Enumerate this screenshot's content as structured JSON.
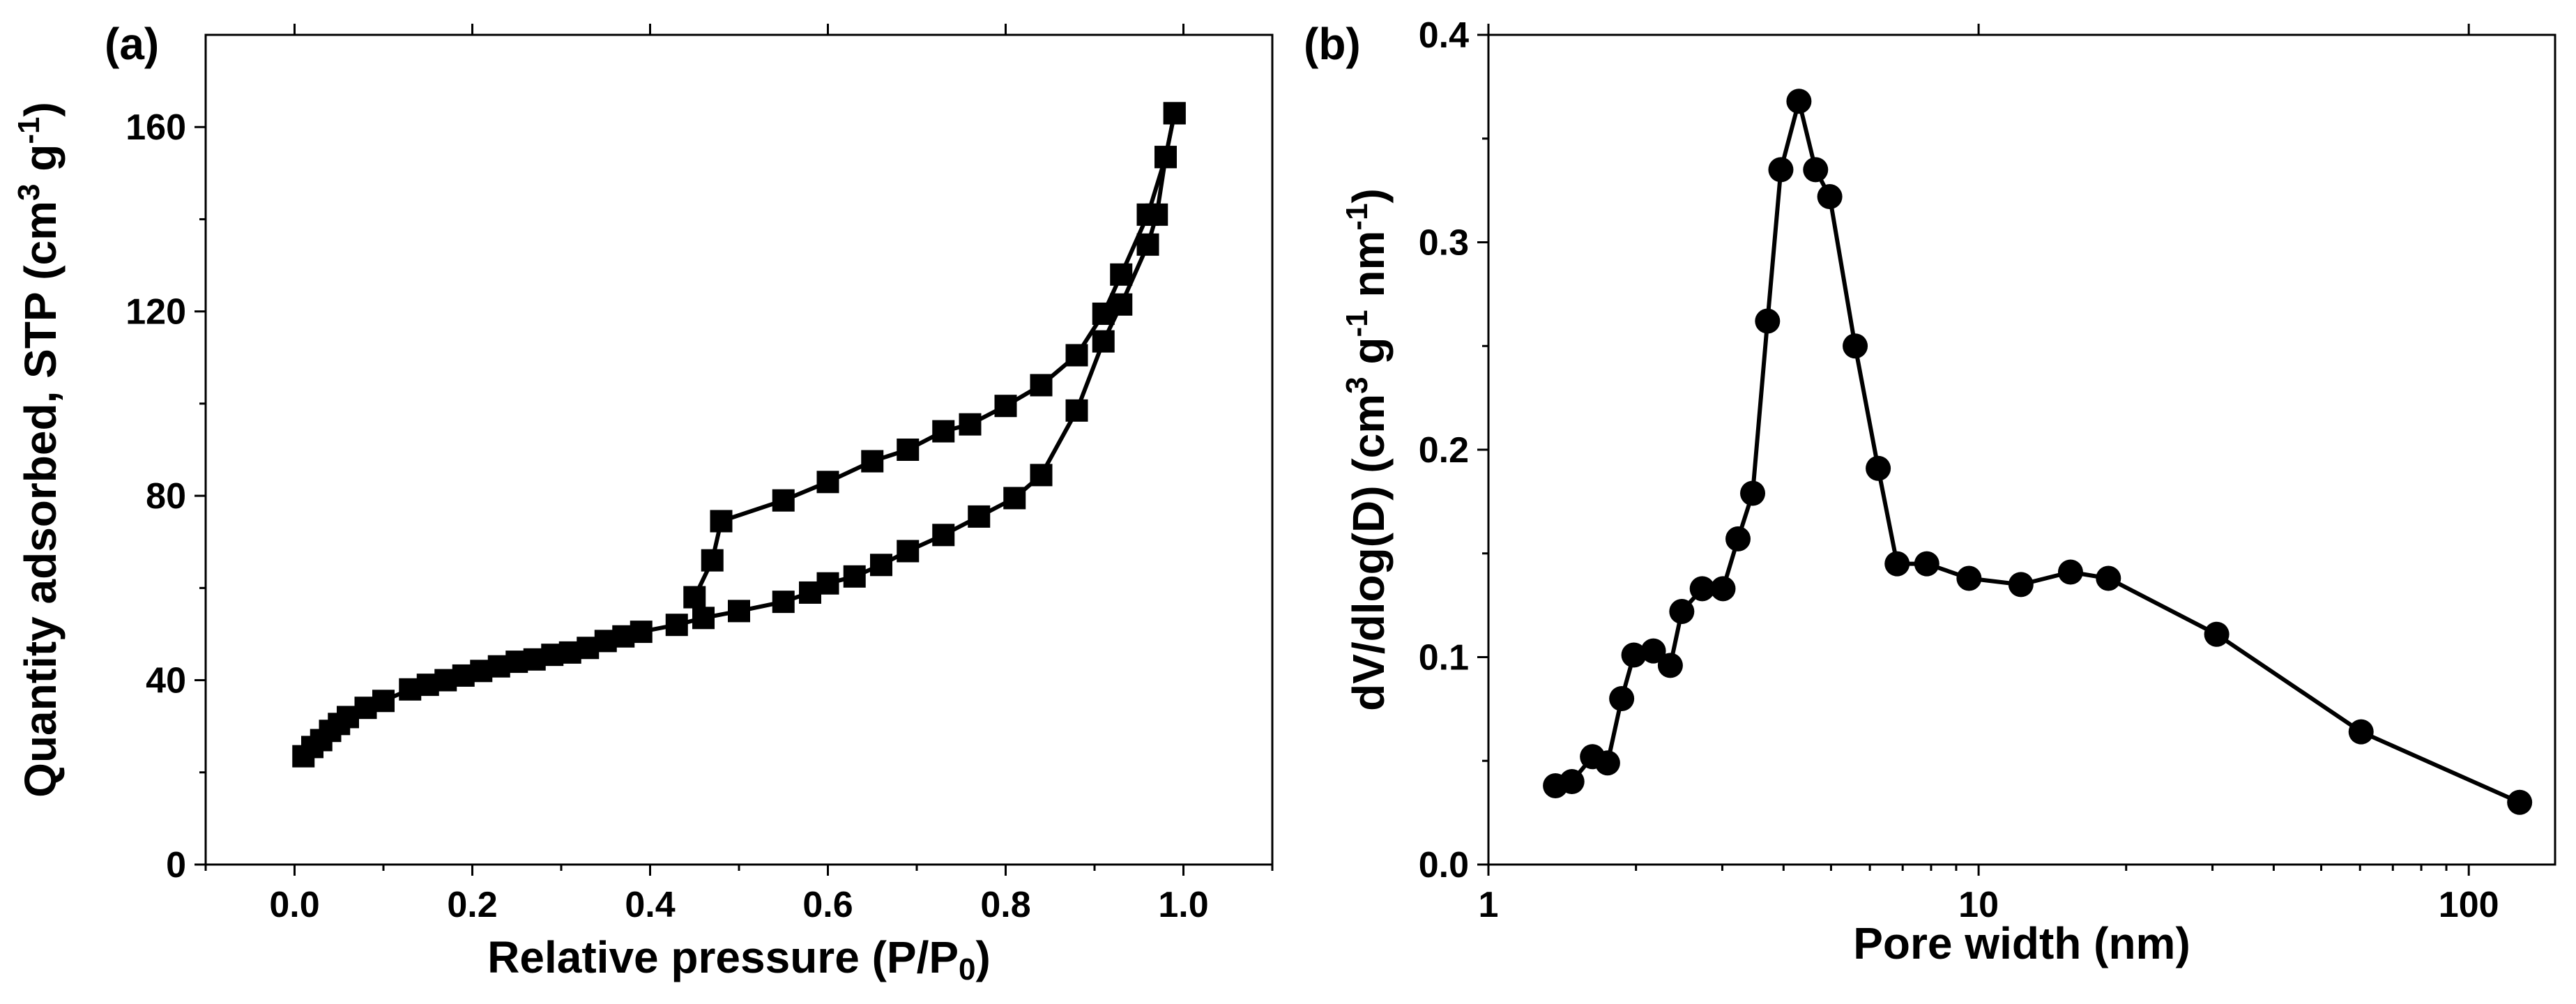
{
  "chart_data": [
    {
      "type": "scatter",
      "panel_label": "(a)",
      "xlabel": "Relative pressure (P/P0)",
      "xlabel_parts": {
        "main": "Relative pressure (P/P",
        "sub": "0",
        "end": ")"
      },
      "ylabel_parts": {
        "main": "Quantity adsorbed, STP (cm",
        "sup1": "3",
        "mid": " g",
        "sup2": "-1",
        "end": ")"
      },
      "xlim": [
        -0.1,
        1.1
      ],
      "ylim": [
        0,
        180
      ],
      "x_ticks": [
        0.0,
        0.2,
        0.4,
        0.6,
        0.8,
        1.0
      ],
      "x_tick_labels": [
        "0.0",
        "0.2",
        "0.4",
        "0.6",
        "0.8",
        "1.0"
      ],
      "y_ticks": [
        0,
        40,
        80,
        120,
        160
      ],
      "y_tick_labels": [
        "0",
        "40",
        "80",
        "120",
        "160"
      ],
      "grid": false,
      "marker": "square",
      "series": [
        {
          "points": [
            [
              0.01,
              23.5
            ],
            [
              0.02,
              25.5
            ],
            [
              0.03,
              27
            ],
            [
              0.04,
              29
            ],
            [
              0.05,
              30.5
            ],
            [
              0.06,
              32
            ],
            [
              0.08,
              34
            ],
            [
              0.1,
              35.5
            ],
            [
              0.13,
              38
            ],
            [
              0.15,
              39
            ],
            [
              0.17,
              40
            ],
            [
              0.19,
              41
            ],
            [
              0.21,
              42
            ],
            [
              0.23,
              43
            ],
            [
              0.25,
              44
            ],
            [
              0.27,
              44.5
            ],
            [
              0.29,
              45.5
            ],
            [
              0.31,
              46
            ],
            [
              0.33,
              47
            ],
            [
              0.35,
              48.5
            ],
            [
              0.37,
              49.5
            ],
            [
              0.39,
              50.5
            ],
            [
              0.43,
              52
            ],
            [
              0.46,
              53.5
            ],
            [
              0.5,
              55
            ],
            [
              0.55,
              57
            ],
            [
              0.58,
              59
            ],
            [
              0.6,
              61
            ],
            [
              0.63,
              62.5
            ],
            [
              0.66,
              65
            ],
            [
              0.69,
              68
            ],
            [
              0.73,
              71.5
            ],
            [
              0.77,
              75.5
            ],
            [
              0.81,
              79.5
            ],
            [
              0.84,
              84.5
            ],
            [
              0.88,
              98.5
            ],
            [
              0.91,
              113.5
            ],
            [
              0.93,
              121.5
            ],
            [
              0.96,
              134.5
            ],
            [
              0.97,
              141
            ],
            [
              0.98,
              153.5
            ],
            [
              0.99,
              163
            ]
          ]
        },
        {
          "points": [
            [
              0.99,
              163
            ],
            [
              0.98,
              153.5
            ],
            [
              0.96,
              141
            ],
            [
              0.93,
              128
            ],
            [
              0.91,
              119.5
            ],
            [
              0.88,
              110.5
            ],
            [
              0.84,
              104
            ],
            [
              0.8,
              99.5
            ],
            [
              0.76,
              95.5
            ],
            [
              0.73,
              94
            ],
            [
              0.69,
              90
            ],
            [
              0.65,
              87.5
            ],
            [
              0.6,
              83
            ],
            [
              0.55,
              79
            ],
            [
              0.48,
              74.5
            ],
            [
              0.47,
              66
            ],
            [
              0.45,
              58
            ]
          ]
        }
      ]
    },
    {
      "type": "line",
      "panel_label": "(b)",
      "xlabel": "Pore width (nm)",
      "ylabel_parts": {
        "main": "dV/dlog(D) (cm",
        "sup1": "3",
        "mid": " g",
        "sup2": "-1",
        "mid2": " nm",
        "sup3": "-1",
        "end": ")"
      },
      "x_scale": "log",
      "xlim": [
        1,
        150
      ],
      "ylim": [
        0,
        0.4
      ],
      "x_ticks": [
        1,
        10,
        100
      ],
      "x_tick_labels": [
        "1",
        "10",
        "100"
      ],
      "y_ticks": [
        0.0,
        0.1,
        0.2,
        0.3,
        0.4
      ],
      "y_tick_labels": [
        "0.0",
        "0.1",
        "0.2",
        "0.3",
        "0.4"
      ],
      "grid": false,
      "marker": "circle",
      "series": [
        {
          "points": [
            [
              1.37,
              0.038
            ],
            [
              1.48,
              0.04
            ],
            [
              1.63,
              0.052
            ],
            [
              1.75,
              0.049
            ],
            [
              1.87,
              0.08
            ],
            [
              1.98,
              0.101
            ],
            [
              2.17,
              0.103
            ],
            [
              2.35,
              0.096
            ],
            [
              2.48,
              0.122
            ],
            [
              2.73,
              0.133
            ],
            [
              3.01,
              0.133
            ],
            [
              3.23,
              0.157
            ],
            [
              3.46,
              0.179
            ],
            [
              3.71,
              0.262
            ],
            [
              3.95,
              0.335
            ],
            [
              4.3,
              0.368
            ],
            [
              4.65,
              0.335
            ],
            [
              4.97,
              0.322
            ],
            [
              5.6,
              0.25
            ],
            [
              6.24,
              0.191
            ],
            [
              6.82,
              0.145
            ],
            [
              7.84,
              0.145
            ],
            [
              9.56,
              0.138
            ],
            [
              12.2,
              0.135
            ],
            [
              15.4,
              0.141
            ],
            [
              18.4,
              0.138
            ],
            [
              30.6,
              0.111
            ],
            [
              60.3,
              0.064
            ],
            [
              127.0,
              0.03
            ]
          ]
        }
      ]
    }
  ]
}
